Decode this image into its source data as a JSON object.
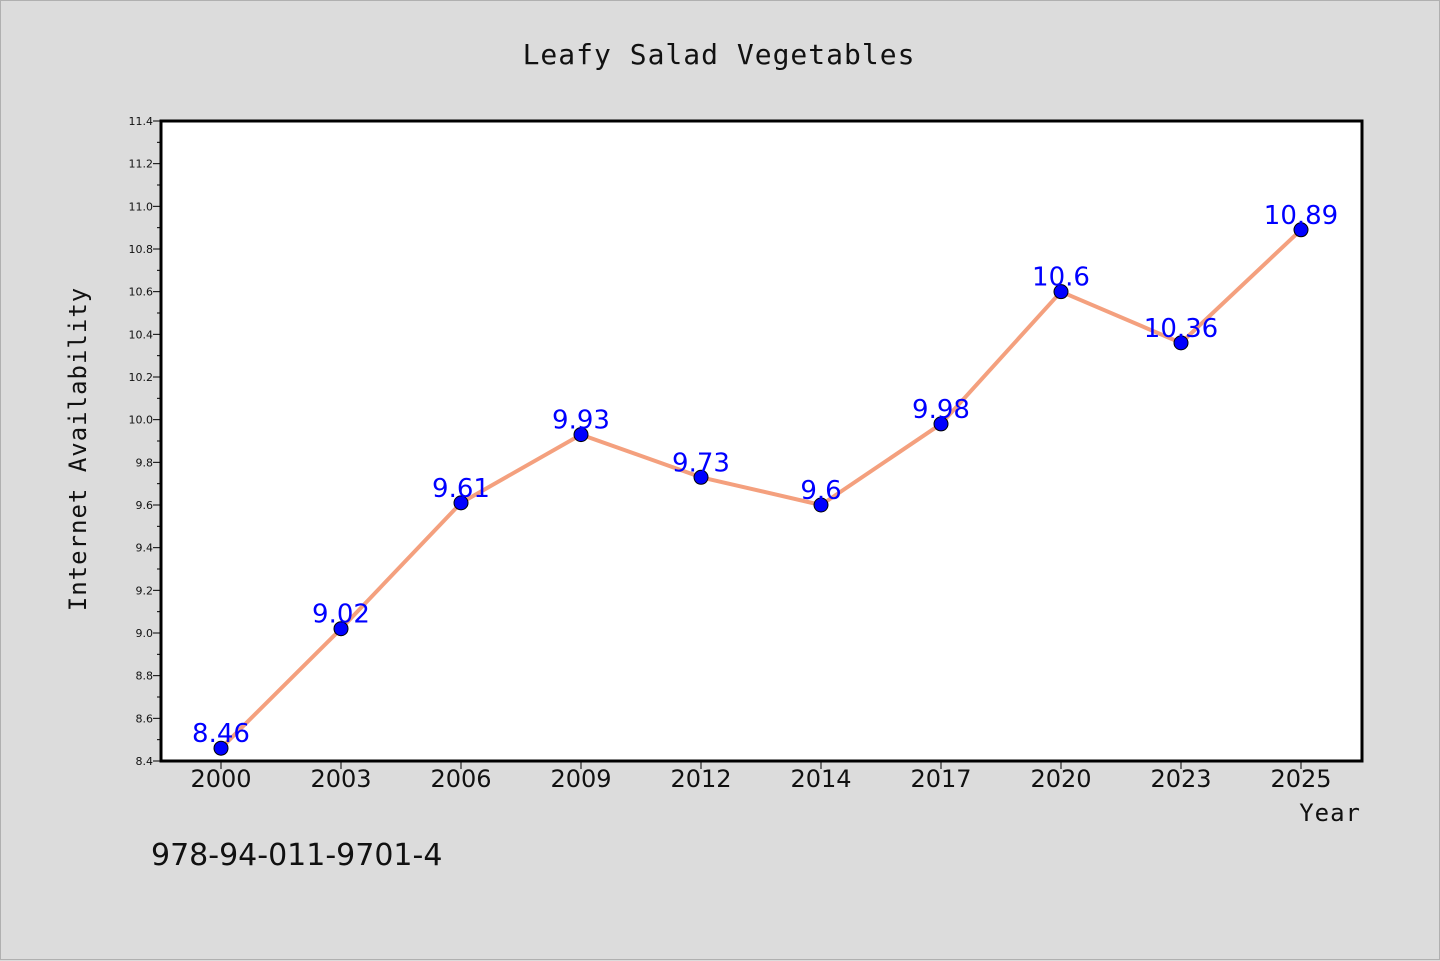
{
  "chart_data": {
    "type": "line",
    "title": "Leafy Salad Vegetables",
    "xlabel": "Year",
    "ylabel": "Internet Availability",
    "categories": [
      "2000",
      "2003",
      "2006",
      "2009",
      "2012",
      "2014",
      "2017",
      "2020",
      "2023",
      "2025"
    ],
    "series": [
      {
        "values": [
          8.46,
          9.02,
          9.61,
          9.93,
          9.73,
          9.6,
          9.98,
          10.6,
          10.36,
          10.89
        ],
        "data_labels": [
          "8.46",
          "9.02",
          "9.61",
          "9.93",
          "9.73",
          "9.6",
          "9.98",
          "10.6",
          "10.36",
          "10.89"
        ]
      }
    ],
    "ylim": [
      8.4,
      11.4
    ],
    "yticks": [
      "8.4",
      "8.6",
      "8.8",
      "9.0",
      "9.2",
      "9.4",
      "9.6",
      "9.8",
      "10.0",
      "10.2",
      "10.4",
      "10.6",
      "10.8",
      "11.0",
      "11.2",
      "11.4"
    ],
    "grid": false,
    "line_color": "#f4a07e",
    "marker_color": "#0000ff",
    "label_color": "#0000ff"
  },
  "footer": {
    "code": "978-94-011-9701-4"
  }
}
